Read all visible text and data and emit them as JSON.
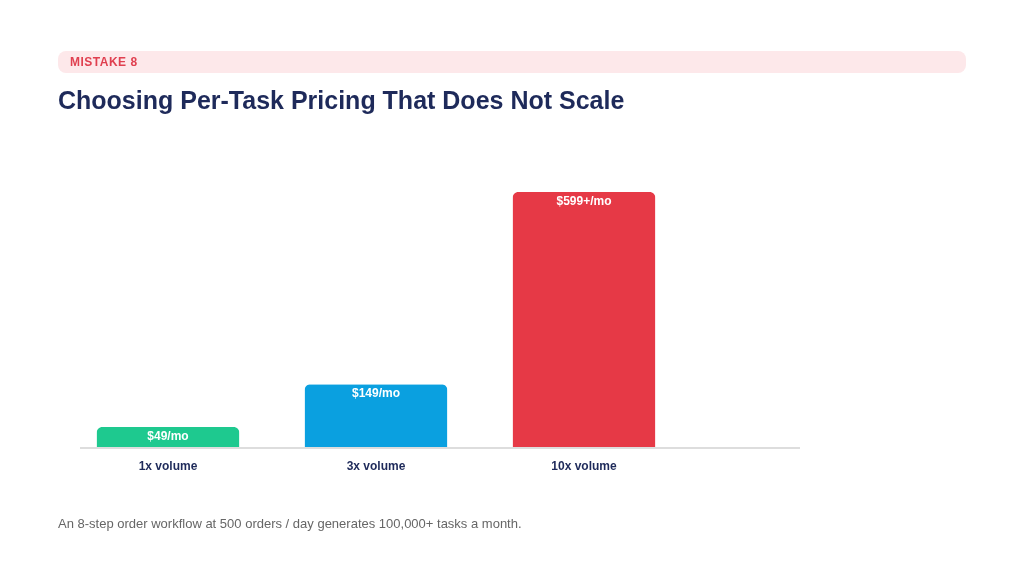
{
  "chart_data": {
    "type": "bar",
    "title": "Choosing Per-Task Pricing That Does Not Scale",
    "categories": [
      "1x volume",
      "3x volume",
      "10x volume"
    ],
    "values": [
      49,
      149,
      599
    ],
    "colors": [
      "#1ec98f",
      "#0aa0e0",
      "#e63946"
    ],
    "value_labels": [
      "$49/mo",
      "$149/mo",
      "$599+/mo"
    ],
    "annotations": [
      "MISTAKE 8",
      "An 8-step order workflow at 500 orders / day generates 100,000+ tasks a month."
    ],
    "grid": false
  }
}
